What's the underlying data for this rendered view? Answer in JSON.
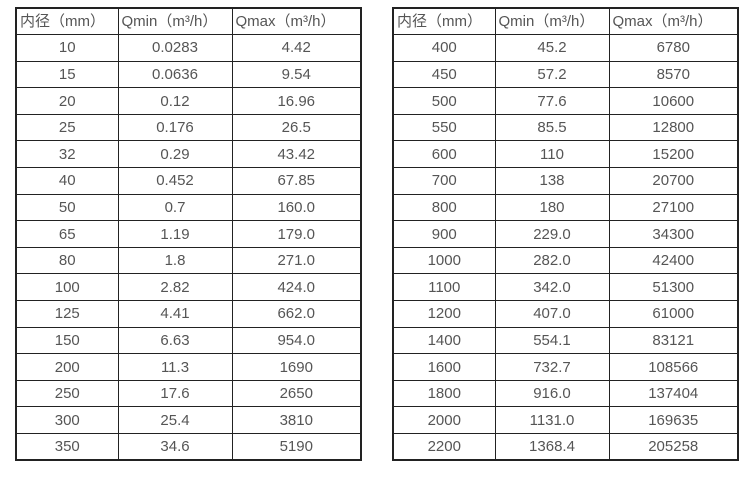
{
  "page": {
    "background_color": "#ffffff",
    "text_color": "#555555",
    "border_color": "#222222"
  },
  "tables": [
    {
      "name": "flow-table-small-diameters",
      "headers": [
        "内径（mm）",
        "Qmin（m³/h）",
        "Qmax（m³/h）"
      ],
      "rows": [
        [
          "10",
          "0.0283",
          "4.42"
        ],
        [
          "15",
          "0.0636",
          "9.54"
        ],
        [
          "20",
          "0.12",
          "16.96"
        ],
        [
          "25",
          "0.176",
          "26.5"
        ],
        [
          "32",
          "0.29",
          "43.42"
        ],
        [
          "40",
          "0.452",
          "67.85"
        ],
        [
          "50",
          "0.7",
          "160.0"
        ],
        [
          "65",
          "1.19",
          "179.0"
        ],
        [
          "80",
          "1.8",
          "271.0"
        ],
        [
          "100",
          "2.82",
          "424.0"
        ],
        [
          "125",
          "4.41",
          "662.0"
        ],
        [
          "150",
          "6.63",
          "954.0"
        ],
        [
          "200",
          "11.3",
          "1690"
        ],
        [
          "250",
          "17.6",
          "2650"
        ],
        [
          "300",
          "25.4",
          "3810"
        ],
        [
          "350",
          "34.6",
          "5190"
        ]
      ]
    },
    {
      "name": "flow-table-large-diameters",
      "headers": [
        "内径（mm）",
        "Qmin（m³/h）",
        "Qmax（m³/h）"
      ],
      "rows": [
        [
          "400",
          "45.2",
          "6780"
        ],
        [
          "450",
          "57.2",
          "8570"
        ],
        [
          "500",
          "77.6",
          "10600"
        ],
        [
          "550",
          "85.5",
          "12800"
        ],
        [
          "600",
          "110",
          "15200"
        ],
        [
          "700",
          "138",
          "20700"
        ],
        [
          "800",
          "180",
          "27100"
        ],
        [
          "900",
          "229.0",
          "34300"
        ],
        [
          "1000",
          "282.0",
          "42400"
        ],
        [
          "1100",
          "342.0",
          "51300"
        ],
        [
          "1200",
          "407.0",
          "61000"
        ],
        [
          "1400",
          "554.1",
          "83121"
        ],
        [
          "1600",
          "732.7",
          "108566"
        ],
        [
          "1800",
          "916.0",
          "137404"
        ],
        [
          "2000",
          "1131.0",
          "169635"
        ],
        [
          "2200",
          "1368.4",
          "205258"
        ]
      ]
    }
  ]
}
